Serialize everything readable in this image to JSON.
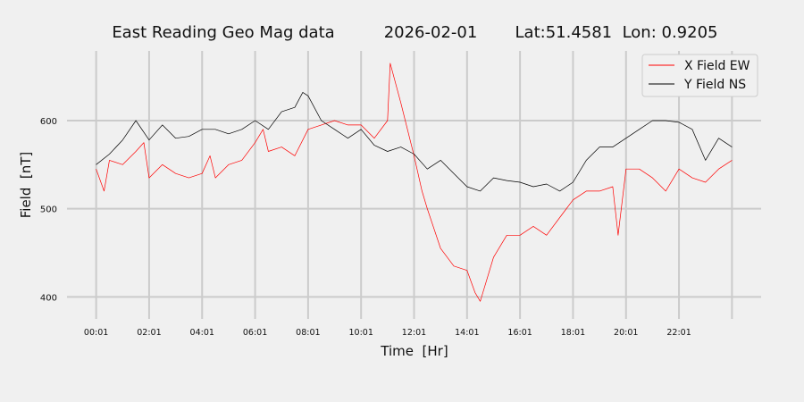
{
  "chart_data": {
    "type": "line",
    "title": {
      "name": "East Reading Geo Mag data",
      "date": "2026-02-01",
      "location": "Lat:51.4581  Lon: 0.9205"
    },
    "xlabel": "Time  [Hr]",
    "ylabel": "Field  [nT]",
    "xlim": [
      -1.1,
      25.1
    ],
    "ylim": [
      375,
      679
    ],
    "x_ticks": [
      0,
      2,
      4,
      6,
      8,
      10,
      12,
      14,
      16,
      18,
      20,
      22,
      24
    ],
    "x_tick_labels": [
      "00:01",
      "02:01",
      "04:01",
      "06:01",
      "08:01",
      "10:01",
      "12:01",
      "14:01",
      "16:01",
      "18:01",
      "20:01",
      "22:01",
      ""
    ],
    "y_ticks": [
      400,
      500,
      600
    ],
    "y_tick_labels": [
      "400",
      "500",
      "600"
    ],
    "grid": true,
    "legend_position": "top-right",
    "series": [
      {
        "name": "X Field EW",
        "color": "#ff0000",
        "x": [
          0,
          0.3,
          0.5,
          1,
          1.5,
          1.8,
          2,
          2.5,
          3,
          3.5,
          4,
          4.3,
          4.5,
          5,
          5.5,
          6,
          6.3,
          6.5,
          7,
          7.5,
          8,
          8.5,
          9,
          9.5,
          10,
          10.5,
          11,
          11.1,
          11.5,
          12,
          12.3,
          12.5,
          13,
          13.5,
          14,
          14.3,
          14.5,
          15,
          15.5,
          16,
          16.5,
          17,
          17.5,
          18,
          18.5,
          19,
          19.5,
          19.7,
          20,
          20.5,
          21,
          21.5,
          22,
          22.5,
          23,
          23.5,
          24
        ],
        "y": [
          545,
          520,
          555,
          550,
          565,
          575,
          535,
          550,
          540,
          535,
          540,
          560,
          535,
          550,
          555,
          575,
          590,
          565,
          570,
          560,
          590,
          595,
          600,
          595,
          595,
          580,
          600,
          665,
          620,
          560,
          520,
          500,
          455,
          435,
          430,
          405,
          395,
          445,
          470,
          470,
          480,
          470,
          490,
          510,
          520,
          520,
          525,
          470,
          545,
          545,
          535,
          520,
          545,
          535,
          530,
          545,
          555
        ]
      },
      {
        "name": "Y Field NS",
        "color": "#000000",
        "x": [
          0,
          0.5,
          1,
          1.5,
          2,
          2.5,
          3,
          3.5,
          4,
          4.5,
          5,
          5.5,
          6,
          6.5,
          7,
          7.5,
          7.8,
          8,
          8.5,
          9,
          9.5,
          10,
          10.5,
          11,
          11.5,
          12,
          12.5,
          13,
          13.5,
          14,
          14.5,
          15,
          15.5,
          16,
          16.5,
          17,
          17.5,
          18,
          18.5,
          19,
          19.5,
          20,
          20.5,
          21,
          21.5,
          22,
          22.5,
          23,
          23.5,
          24
        ],
        "y": [
          550,
          562,
          578,
          600,
          578,
          595,
          580,
          582,
          590,
          590,
          585,
          590,
          600,
          590,
          610,
          615,
          632,
          628,
          600,
          590,
          580,
          590,
          572,
          565,
          570,
          562,
          545,
          555,
          540,
          525,
          520,
          535,
          532,
          530,
          525,
          528,
          520,
          530,
          555,
          570,
          570,
          580,
          590,
          600,
          600,
          598,
          590,
          555,
          580,
          570
        ]
      }
    ]
  }
}
